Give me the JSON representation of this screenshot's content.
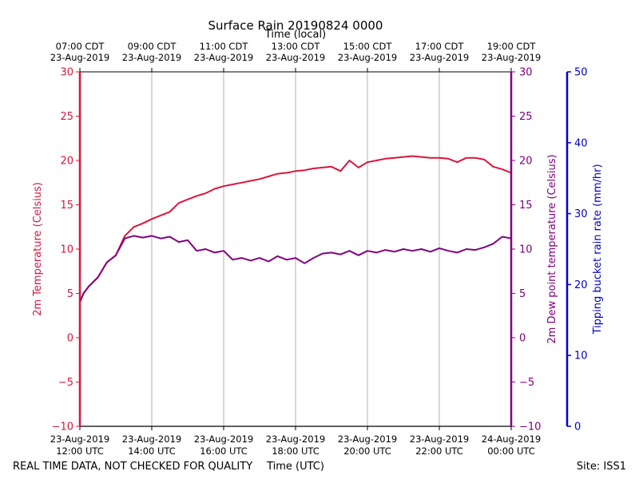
{
  "chart_data": {
    "type": "line",
    "title": "Surface Rain 20190824 0000",
    "top_xlabel": "Time (local)",
    "xlabel": "Time (UTC)",
    "footer_left": "REAL TIME DATA, NOT CHECKED FOR QUALITY",
    "footer_right": "Site: ISS1",
    "x_range_hours_utc": [
      12,
      24
    ],
    "x_ticks_utc": [
      {
        "h": 12,
        "l1": "23-Aug-2019",
        "l2": "12:00 UTC"
      },
      {
        "h": 14,
        "l1": "23-Aug-2019",
        "l2": "14:00 UTC"
      },
      {
        "h": 16,
        "l1": "23-Aug-2019",
        "l2": "16:00 UTC"
      },
      {
        "h": 18,
        "l1": "23-Aug-2019",
        "l2": "18:00 UTC"
      },
      {
        "h": 20,
        "l1": "23-Aug-2019",
        "l2": "20:00 UTC"
      },
      {
        "h": 22,
        "l1": "23-Aug-2019",
        "l2": "22:00 UTC"
      },
      {
        "h": 24,
        "l1": "24-Aug-2019",
        "l2": "00:00 UTC"
      }
    ],
    "x_ticks_local": [
      {
        "h": 12,
        "l1": "07:00 CDT",
        "l2": "23-Aug-2019"
      },
      {
        "h": 14,
        "l1": "09:00 CDT",
        "l2": "23-Aug-2019"
      },
      {
        "h": 16,
        "l1": "11:00 CDT",
        "l2": "23-Aug-2019"
      },
      {
        "h": 18,
        "l1": "13:00 CDT",
        "l2": "23-Aug-2019"
      },
      {
        "h": 20,
        "l1": "15:00 CDT",
        "l2": "23-Aug-2019"
      },
      {
        "h": 22,
        "l1": "17:00 CDT",
        "l2": "23-Aug-2019"
      },
      {
        "h": 24,
        "l1": "19:00 CDT",
        "l2": "23-Aug-2019"
      }
    ],
    "grid": "vertical",
    "axes": {
      "temperature": {
        "label": "2m Temperature (Celsius)",
        "ylim": [
          -10,
          30
        ],
        "ticks": [
          -10,
          -5,
          0,
          5,
          10,
          15,
          20,
          25,
          30
        ],
        "tick_labels": [
          "−10",
          "−5",
          "0",
          "5",
          "10",
          "15",
          "20",
          "25",
          "30"
        ],
        "color": "#dc143c"
      },
      "dewpoint": {
        "label": "2m Dew point temperature (Celsius)",
        "ylim": [
          -10,
          30
        ],
        "ticks": [
          -10,
          -5,
          0,
          5,
          10,
          15,
          20,
          25,
          30
        ],
        "tick_labels": [
          "−10",
          "−5",
          "0",
          "5",
          "10",
          "15",
          "20",
          "25",
          "30"
        ],
        "color": "#800080"
      },
      "rain_rate": {
        "label": "Tipping bucket rain rate (mm/hr)",
        "ylim": [
          0,
          50
        ],
        "ticks": [
          0,
          10,
          20,
          30,
          40,
          50
        ],
        "tick_labels": [
          "0",
          "10",
          "20",
          "30",
          "40",
          "50"
        ],
        "color": "#0000cd"
      }
    },
    "series": [
      {
        "key": "temperature",
        "color": "#dc143c",
        "x": [
          12.0,
          12.1,
          12.25,
          12.5,
          12.75,
          13.0,
          13.25,
          13.5,
          13.75,
          14.0,
          14.25,
          14.5,
          14.75,
          15.0,
          15.25,
          15.5,
          15.75,
          16.0,
          16.25,
          16.5,
          16.75,
          17.0,
          17.25,
          17.5,
          17.75,
          18.0,
          18.25,
          18.5,
          18.75,
          19.0,
          19.25,
          19.5,
          19.75,
          20.0,
          20.25,
          20.5,
          20.75,
          21.0,
          21.25,
          21.5,
          21.75,
          22.0,
          22.25,
          22.5,
          22.75,
          23.0,
          23.25,
          23.5,
          23.75,
          24.0
        ],
        "values": [
          4.0,
          5.0,
          5.8,
          6.8,
          8.5,
          9.3,
          11.5,
          12.5,
          12.9,
          13.4,
          13.8,
          14.2,
          15.2,
          15.6,
          16.0,
          16.3,
          16.8,
          17.1,
          17.3,
          17.5,
          17.7,
          17.9,
          18.2,
          18.5,
          18.6,
          18.8,
          18.9,
          19.1,
          19.2,
          19.3,
          18.8,
          20.0,
          19.2,
          19.8,
          20.0,
          20.2,
          20.3,
          20.4,
          20.5,
          20.4,
          20.3,
          20.3,
          20.2,
          19.8,
          20.3,
          20.3,
          20.1,
          19.3,
          19.0,
          18.6
        ]
      },
      {
        "key": "dewpoint",
        "color": "#800080",
        "x": [
          12.0,
          12.1,
          12.25,
          12.5,
          12.75,
          13.0,
          13.25,
          13.5,
          13.75,
          14.0,
          14.25,
          14.5,
          14.75,
          15.0,
          15.25,
          15.5,
          15.75,
          16.0,
          16.25,
          16.5,
          16.75,
          17.0,
          17.25,
          17.5,
          17.75,
          18.0,
          18.25,
          18.5,
          18.75,
          19.0,
          19.25,
          19.5,
          19.75,
          20.0,
          20.25,
          20.5,
          20.75,
          21.0,
          21.25,
          21.5,
          21.75,
          22.0,
          22.25,
          22.5,
          22.75,
          23.0,
          23.25,
          23.5,
          23.75,
          24.0
        ],
        "values": [
          4.0,
          5.0,
          5.8,
          6.8,
          8.5,
          9.3,
          11.2,
          11.5,
          11.3,
          11.5,
          11.2,
          11.4,
          10.8,
          11.0,
          9.8,
          10.0,
          9.6,
          9.8,
          8.8,
          9.0,
          8.7,
          9.0,
          8.6,
          9.2,
          8.8,
          9.0,
          8.4,
          9.0,
          9.5,
          9.6,
          9.4,
          9.8,
          9.3,
          9.8,
          9.6,
          9.9,
          9.7,
          10.0,
          9.8,
          10.0,
          9.7,
          10.1,
          9.8,
          9.6,
          10.0,
          9.9,
          10.2,
          10.6,
          11.4,
          11.2
        ]
      }
    ]
  }
}
